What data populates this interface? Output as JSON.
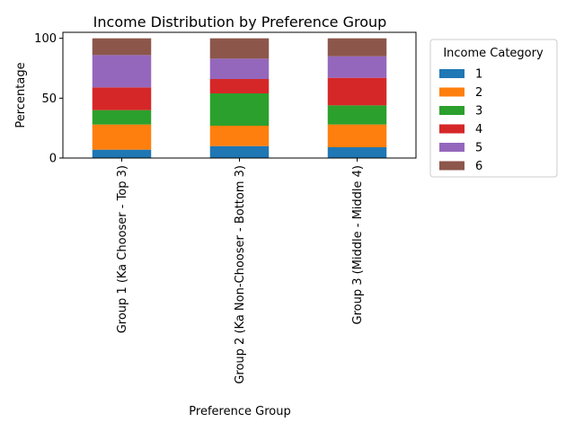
{
  "chart_data": {
    "type": "bar",
    "stacked": true,
    "title": "Income Distribution by Preference Group",
    "xlabel": "Preference Group",
    "ylabel": "Percentage",
    "ylim": [
      0,
      105
    ],
    "yticks": [
      0,
      50,
      100
    ],
    "grid": false,
    "legend_title": "Income Category",
    "legend_position": "outside-right",
    "categories": [
      "Group 1 (Ka Chooser - Top 3)",
      "Group 2 (Ka Non-Chooser - Bottom 3)",
      "Group 3 (Middle - Middle 4)"
    ],
    "series": [
      {
        "name": "1",
        "color": "#1f77b4",
        "values": [
          7,
          10,
          9
        ]
      },
      {
        "name": "2",
        "color": "#ff7f0e",
        "values": [
          21,
          17,
          19
        ]
      },
      {
        "name": "3",
        "color": "#2ca02c",
        "values": [
          12,
          27,
          16
        ]
      },
      {
        "name": "4",
        "color": "#d62728",
        "values": [
          19,
          12,
          23
        ]
      },
      {
        "name": "5",
        "color": "#9467bd",
        "values": [
          27,
          17,
          18
        ]
      },
      {
        "name": "6",
        "color": "#8c564b",
        "values": [
          14,
          17,
          15
        ]
      }
    ]
  }
}
